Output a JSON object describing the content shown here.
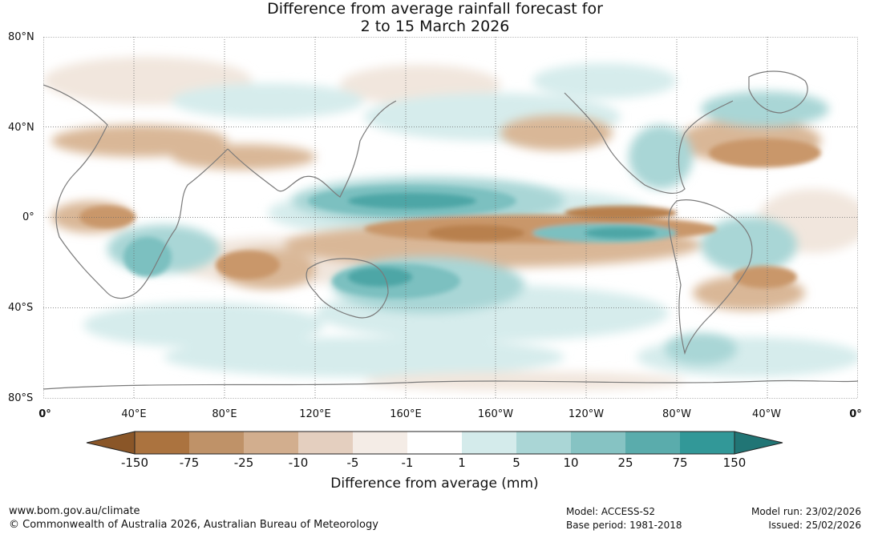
{
  "title": {
    "line1": "Difference from average rainfall forecast for",
    "line2": "2 to 15 March 2026"
  },
  "map": {
    "lat_labels": [
      "80°N",
      "40°N",
      "0°",
      "40°S",
      "80°S"
    ],
    "lon_labels": [
      "0°",
      "40°E",
      "80°E",
      "120°E",
      "160°E",
      "160°W",
      "120°W",
      "80°W",
      "40°W",
      "0°"
    ],
    "colors": {
      "dry_strong": "#b8804d",
      "dry_mid": "#c9976a",
      "dry_light": "#d9b797",
      "dry_faint": "#f1e6dd",
      "wet_faint": "#d6ecec",
      "wet_light": "#a9d6d6",
      "wet_mid": "#7bc0c0",
      "wet_strong": "#4ea6a6",
      "coast": "#7a7a7a"
    }
  },
  "legend": {
    "ticks": [
      "-150",
      "-75",
      "-25",
      "-10",
      "-5",
      "-1",
      "1",
      "5",
      "10",
      "25",
      "75",
      "150"
    ],
    "colors": [
      "#8a5628",
      "#ab733f",
      "#bf9268",
      "#d2ae8e",
      "#e4cfbf",
      "#f4ece6",
      "#ffffff",
      "#d4ebeb",
      "#aad6d6",
      "#86c3c3",
      "#5aacac",
      "#329898",
      "#217575"
    ],
    "title": "Difference from average (mm)"
  },
  "footer": {
    "website": "www.bom.gov.au/climate",
    "copyright": "© Commonwealth of Australia 2026, Australian Bureau of Meteorology",
    "model": "Model: ACCESS-S2",
    "base_period": "Base period: 1981-2018",
    "model_run": "Model run: 23/02/2026",
    "issued": "Issued: 25/02/2026"
  }
}
